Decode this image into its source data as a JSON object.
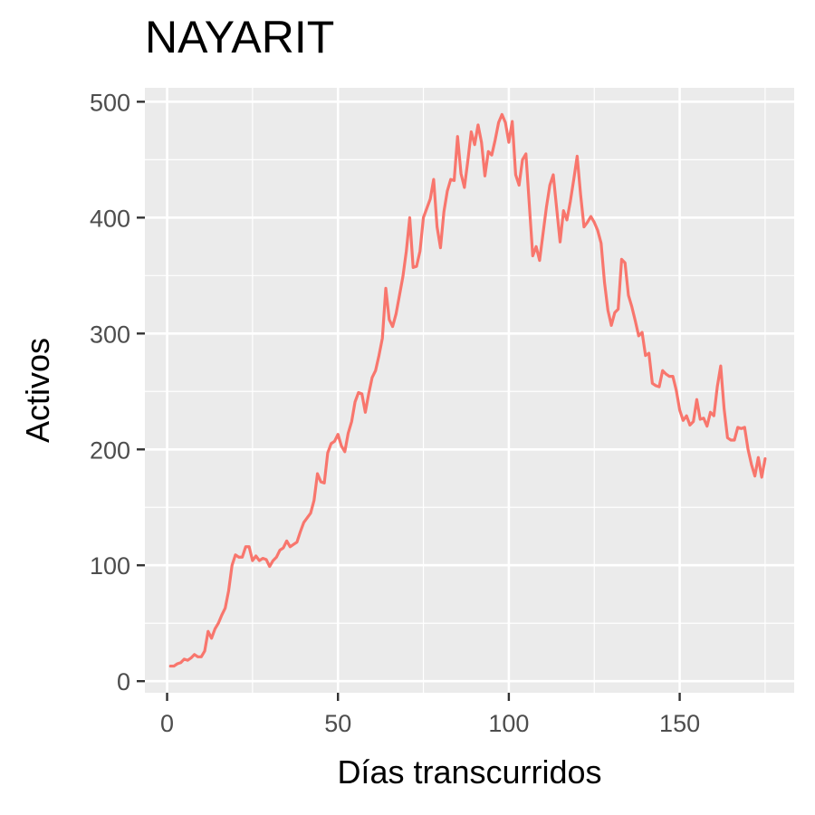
{
  "chart_data": {
    "type": "line",
    "title": "NAYARIT",
    "xlabel": "Días transcurridos",
    "ylabel": "Activos",
    "xlim": [
      -6.5,
      183.5
    ],
    "ylim": [
      -10,
      512
    ],
    "x_ticks": [
      0,
      50,
      100,
      150
    ],
    "x_tick_labels": [
      "0",
      "50",
      "100",
      "150"
    ],
    "y_ticks": [
      0,
      100,
      200,
      300,
      400,
      500
    ],
    "y_tick_labels": [
      "0",
      "100",
      "200",
      "300",
      "400",
      "500"
    ],
    "grid": true,
    "colors": {
      "panel": "#ebebeb",
      "grid": "#ffffff",
      "line": "#f8766d"
    },
    "series": [
      {
        "x": [
          1,
          2,
          3,
          4,
          5,
          6,
          7,
          8,
          9,
          10,
          11,
          12,
          13,
          14,
          15,
          16,
          17,
          18,
          19,
          20,
          21,
          22,
          23,
          24,
          25,
          26,
          27,
          28,
          29,
          30,
          31,
          32,
          33,
          34,
          35,
          36,
          37,
          38,
          39,
          40,
          41,
          42,
          43,
          44,
          45,
          46,
          47,
          48,
          49,
          50,
          51,
          52,
          53,
          54,
          55,
          56,
          57,
          58,
          59,
          60,
          61,
          62,
          63,
          64,
          65,
          66,
          67,
          68,
          69,
          70,
          71,
          72,
          73,
          74,
          75,
          76,
          77,
          78,
          79,
          80,
          81,
          82,
          83,
          84,
          85,
          86,
          87,
          88,
          89,
          90,
          91,
          92,
          93,
          94,
          95,
          96,
          97,
          98,
          99,
          100,
          101,
          102,
          103,
          104,
          105,
          106,
          107,
          108,
          109,
          110,
          111,
          112,
          113,
          114,
          115,
          116,
          117,
          118,
          119,
          120,
          121,
          122,
          123,
          124,
          125,
          126,
          127,
          128,
          129,
          130,
          131,
          132,
          133,
          134,
          135,
          136,
          137,
          138,
          139,
          140,
          141,
          142,
          143,
          144,
          145,
          146,
          147,
          148,
          149,
          150,
          151,
          152,
          153,
          154,
          155,
          156,
          157,
          158,
          159,
          160,
          161,
          162,
          163,
          164,
          165,
          166,
          167,
          168,
          169,
          170,
          171,
          172,
          173,
          174,
          175
        ],
        "y": [
          13,
          13,
          15,
          16,
          19,
          18,
          20,
          23,
          21,
          21,
          26,
          43,
          37,
          45,
          50,
          57,
          63,
          78,
          100,
          109,
          107,
          107,
          116,
          116,
          104,
          108,
          104,
          106,
          105,
          99,
          104,
          107,
          113,
          115,
          121,
          116,
          118,
          120,
          129,
          137,
          141,
          145,
          156,
          179,
          172,
          171,
          197,
          205,
          207,
          213,
          203,
          198,
          214,
          224,
          241,
          249,
          248,
          232,
          248,
          262,
          268,
          281,
          296,
          339,
          312,
          306,
          317,
          333,
          349,
          371,
          400,
          357,
          358,
          371,
          400,
          408,
          416,
          433,
          392,
          374,
          405,
          423,
          433,
          432,
          470,
          438,
          426,
          449,
          474,
          463,
          480,
          465,
          436,
          457,
          454,
          467,
          482,
          489,
          482,
          465,
          483,
          437,
          428,
          450,
          455,
          411,
          367,
          375,
          363,
          386,
          409,
          428,
          437,
          408,
          379,
          406,
          398,
          414,
          433,
          453,
          420,
          392,
          396,
          401,
          396,
          389,
          378,
          344,
          320,
          307,
          318,
          321,
          364,
          361,
          333,
          323,
          311,
          298,
          301,
          281,
          283,
          257,
          255,
          254,
          268,
          265,
          263,
          263,
          251,
          234,
          225,
          229,
          221,
          224,
          243,
          226,
          227,
          220,
          232,
          229,
          254,
          272,
          235,
          210,
          208,
          208,
          219,
          218,
          219,
          200,
          187,
          177,
          193,
          176,
          192
        ]
      }
    ]
  }
}
